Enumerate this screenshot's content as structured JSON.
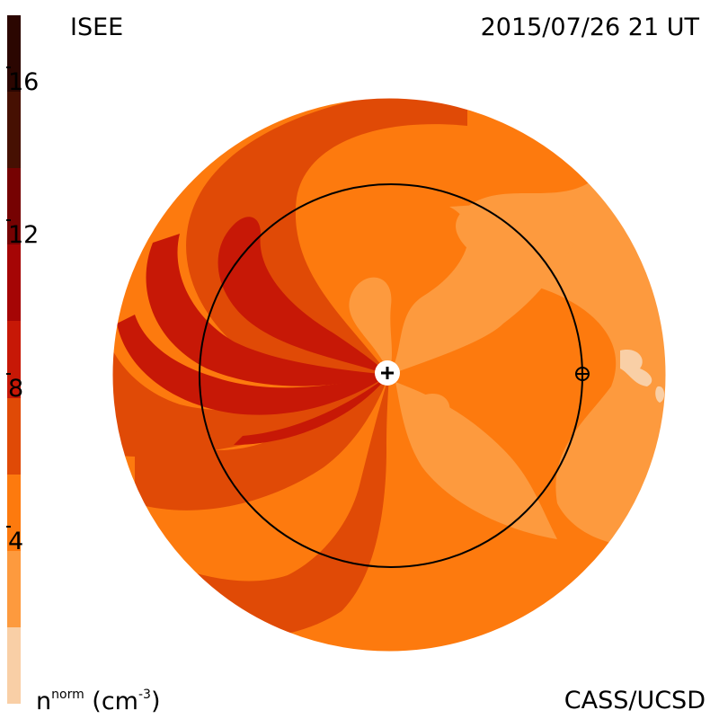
{
  "header": {
    "source": "ISEE",
    "datetime": "2015/07/26 21 UT"
  },
  "footer": {
    "credit": "CASS/UCSD",
    "unit_base": "n",
    "unit_sup": "norm",
    "unit_open": " (cm",
    "unit_exp": "-3",
    "unit_close": ")"
  },
  "colorbar": {
    "levels": [
      "#f9cfa6",
      "#fd9a3e",
      "#fd7a0e",
      "#e04a06",
      "#c71806",
      "#a50505",
      "#760202",
      "#461002",
      "#2b0601"
    ],
    "ticks": [
      {
        "label": "4",
        "value": 4
      },
      {
        "label": "8",
        "value": 8
      },
      {
        "label": "12",
        "value": 12
      },
      {
        "label": "16",
        "value": 16
      }
    ],
    "range": [
      0,
      18
    ]
  },
  "map": {
    "background_color": "#fd7a0e",
    "sun_marker": "sun-plus-icon",
    "earth_marker": "earth-crosshair-icon"
  }
}
